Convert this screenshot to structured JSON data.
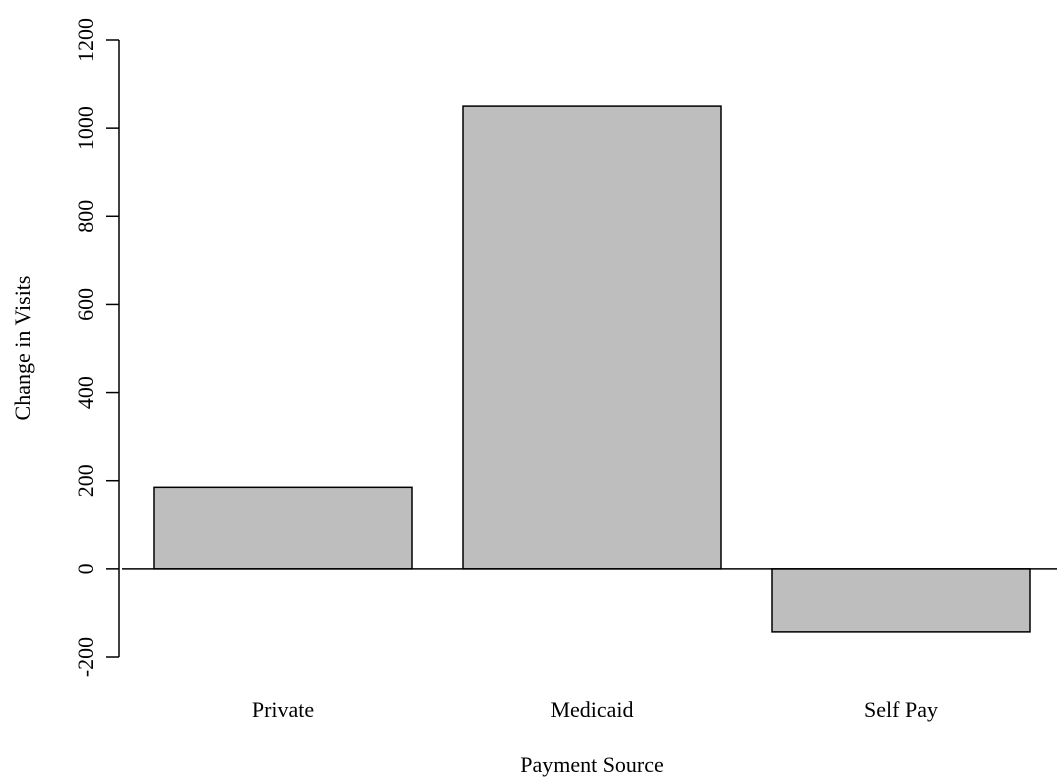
{
  "chart_data": {
    "type": "bar",
    "title": "",
    "xlabel": "Payment Source",
    "ylabel": "Change in Visits",
    "categories": [
      "Private",
      "Medicaid",
      "Self Pay"
    ],
    "values": [
      185,
      1050,
      -143
    ],
    "ylim": [
      -200,
      1200
    ],
    "yticks": [
      -200,
      0,
      200,
      400,
      600,
      800,
      1000,
      1200
    ],
    "grid": false,
    "legend": "none",
    "bar_color": "#bebebe",
    "bar_edge_color": "#000000",
    "baseline": 0
  }
}
